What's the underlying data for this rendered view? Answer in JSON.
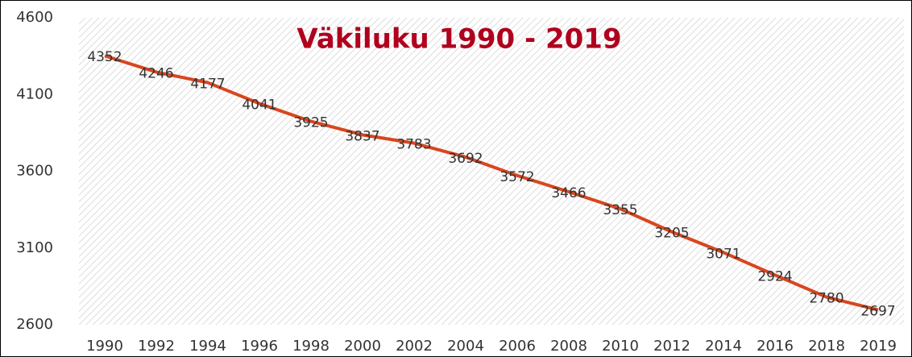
{
  "chart_data": {
    "type": "line",
    "title": "Väkiluku 1990 - 2019",
    "categories": [
      "1990",
      "1992",
      "1994",
      "1996",
      "1998",
      "2000",
      "2002",
      "2004",
      "2006",
      "2008",
      "2010",
      "2012",
      "2014",
      "2016",
      "2018",
      "2019"
    ],
    "series": [
      {
        "name": "Väkiluku",
        "color": "#d9461e",
        "values": [
          4352,
          4246,
          4177,
          4041,
          3925,
          3837,
          3783,
          3692,
          3572,
          3466,
          3355,
          3205,
          3071,
          2924,
          2780,
          2697
        ]
      }
    ],
    "ylim": [
      2600,
      4600
    ],
    "yticks": [
      2600,
      3100,
      3600,
      4100,
      4600
    ],
    "grid": false
  }
}
